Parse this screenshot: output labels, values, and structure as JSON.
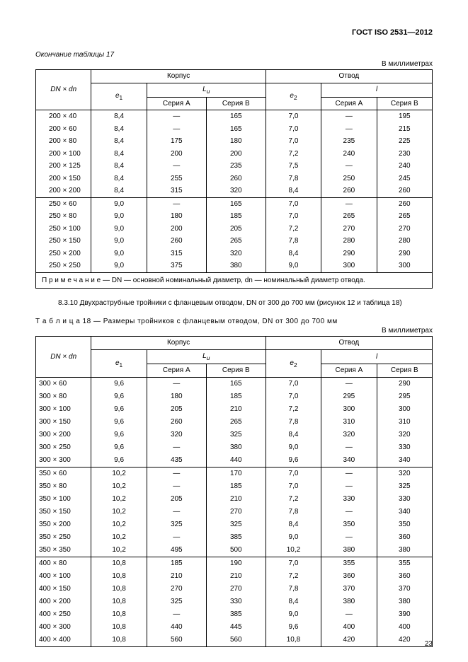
{
  "doc_title": "ГОСТ ISO 2531—2012",
  "table17_continuation": "Окончание таблицы 17",
  "units_label": "В миллиметрах",
  "headers": {
    "dn": "DN × dn",
    "corpus": "Корпус",
    "otvod": "Отвод",
    "e1": "e",
    "e1_sub": "1",
    "e2": "e",
    "e2_sub": "2",
    "Lu": "L",
    "Lu_sub": "u",
    "l_i": "l",
    "serA": "Серия A",
    "serB": "Серия B"
  },
  "t17_note": "П р и м е ч а н и е — DN — основной номинальный диаметр, dn — номинальный диаметр отвода.",
  "para_8310": "8.3.10 Двухраструбные тройники с фланцевым отводом, DN от 300 до 700 мм (рисунок 12 и таб­лица 18)",
  "t18_caption": "Т а б л и ц а  18 — Размеры тройников с фланцевым отводом, DN от 300 до 700 мм",
  "page_no": "23",
  "t17_groups": [
    [
      {
        "dn": "200 × 40",
        "e1": "8,4",
        "a": "—",
        "b": "165",
        "e2": "7,0",
        "la": "—",
        "lb": "195"
      },
      {
        "dn": "200 × 60",
        "e1": "8,4",
        "a": "—",
        "b": "165",
        "e2": "7,0",
        "la": "—",
        "lb": "215"
      },
      {
        "dn": "200 × 80",
        "e1": "8,4",
        "a": "175",
        "b": "180",
        "e2": "7,0",
        "la": "235",
        "lb": "225"
      },
      {
        "dn": "200 × 100",
        "e1": "8,4",
        "a": "200",
        "b": "200",
        "e2": "7,2",
        "la": "240",
        "lb": "230"
      },
      {
        "dn": "200 × 125",
        "e1": "8,4",
        "a": "—",
        "b": "235",
        "e2": "7,5",
        "la": "—",
        "lb": "240"
      },
      {
        "dn": "200 × 150",
        "e1": "8,4",
        "a": "255",
        "b": "260",
        "e2": "7,8",
        "la": "250",
        "lb": "245"
      },
      {
        "dn": "200 × 200",
        "e1": "8,4",
        "a": "315",
        "b": "320",
        "e2": "8,4",
        "la": "260",
        "lb": "260"
      }
    ],
    [
      {
        "dn": "250 × 60",
        "e1": "9,0",
        "a": "—",
        "b": "165",
        "e2": "7,0",
        "la": "—",
        "lb": "260"
      },
      {
        "dn": "250 × 80",
        "e1": "9,0",
        "a": "180",
        "b": "185",
        "e2": "7,0",
        "la": "265",
        "lb": "265"
      },
      {
        "dn": "250 × 100",
        "e1": "9,0",
        "a": "200",
        "b": "205",
        "e2": "7,2",
        "la": "270",
        "lb": "270"
      },
      {
        "dn": "250 × 150",
        "e1": "9,0",
        "a": "260",
        "b": "265",
        "e2": "7,8",
        "la": "280",
        "lb": "280"
      },
      {
        "dn": "250 × 200",
        "e1": "9,0",
        "a": "315",
        "b": "320",
        "e2": "8,4",
        "la": "290",
        "lb": "290"
      },
      {
        "dn": "250 × 250",
        "e1": "9,0",
        "a": "375",
        "b": "380",
        "e2": "9,0",
        "la": "300",
        "lb": "300"
      }
    ]
  ],
  "t18_groups": [
    [
      {
        "dn": "300 × 60",
        "e1": "9,6",
        "a": "—",
        "b": "165",
        "e2": "7,0",
        "la": "—",
        "lb": "290"
      },
      {
        "dn": "300 × 80",
        "e1": "9,6",
        "a": "180",
        "b": "185",
        "e2": "7,0",
        "la": "295",
        "lb": "295"
      },
      {
        "dn": "300 × 100",
        "e1": "9,6",
        "a": "205",
        "b": "210",
        "e2": "7,2",
        "la": "300",
        "lb": "300"
      },
      {
        "dn": "300 × 150",
        "e1": "9,6",
        "a": "260",
        "b": "265",
        "e2": "7,8",
        "la": "310",
        "lb": "310"
      },
      {
        "dn": "300 × 200",
        "e1": "9,6",
        "a": "320",
        "b": "325",
        "e2": "8,4",
        "la": "320",
        "lb": "320"
      },
      {
        "dn": "300 × 250",
        "e1": "9,6",
        "a": "—",
        "b": "380",
        "e2": "9,0",
        "la": "—",
        "lb": "330"
      },
      {
        "dn": "300 × 300",
        "e1": "9,6",
        "a": "435",
        "b": "440",
        "e2": "9,6",
        "la": "340",
        "lb": "340"
      }
    ],
    [
      {
        "dn": "350 × 60",
        "e1": "10,2",
        "a": "—",
        "b": "170",
        "e2": "7,0",
        "la": "—",
        "lb": "320"
      },
      {
        "dn": "350 × 80",
        "e1": "10,2",
        "a": "—",
        "b": "185",
        "e2": "7,0",
        "la": "—",
        "lb": "325"
      },
      {
        "dn": "350 × 100",
        "e1": "10,2",
        "a": "205",
        "b": "210",
        "e2": "7,2",
        "la": "330",
        "lb": "330"
      },
      {
        "dn": "350 × 150",
        "e1": "10,2",
        "a": "—",
        "b": "270",
        "e2": "7,8",
        "la": "—",
        "lb": "340"
      },
      {
        "dn": "350 × 200",
        "e1": "10,2",
        "a": "325",
        "b": "325",
        "e2": "8,4",
        "la": "350",
        "lb": "350"
      },
      {
        "dn": "350 × 250",
        "e1": "10,2",
        "a": "—",
        "b": "385",
        "e2": "9,0",
        "la": "—",
        "lb": "360"
      },
      {
        "dn": "350 × 350",
        "e1": "10,2",
        "a": "495",
        "b": "500",
        "e2": "10,2",
        "la": "380",
        "lb": "380"
      }
    ],
    [
      {
        "dn": "400 × 80",
        "e1": "10,8",
        "a": "185",
        "b": "190",
        "e2": "7,0",
        "la": "355",
        "lb": "355"
      },
      {
        "dn": "400 × 100",
        "e1": "10,8",
        "a": "210",
        "b": "210",
        "e2": "7,2",
        "la": "360",
        "lb": "360"
      },
      {
        "dn": "400 × 150",
        "e1": "10,8",
        "a": "270",
        "b": "270",
        "e2": "7,8",
        "la": "370",
        "lb": "370"
      },
      {
        "dn": "400 × 200",
        "e1": "10,8",
        "a": "325",
        "b": "330",
        "e2": "8,4",
        "la": "380",
        "lb": "380"
      },
      {
        "dn": "400 × 250",
        "e1": "10,8",
        "a": "—",
        "b": "385",
        "e2": "9,0",
        "la": "—",
        "lb": "390"
      },
      {
        "dn": "400 × 300",
        "e1": "10,8",
        "a": "440",
        "b": "445",
        "e2": "9,6",
        "la": "400",
        "lb": "400"
      },
      {
        "dn": "400 × 400",
        "e1": "10,8",
        "a": "560",
        "b": "560",
        "e2": "10,8",
        "la": "420",
        "lb": "420"
      }
    ]
  ]
}
